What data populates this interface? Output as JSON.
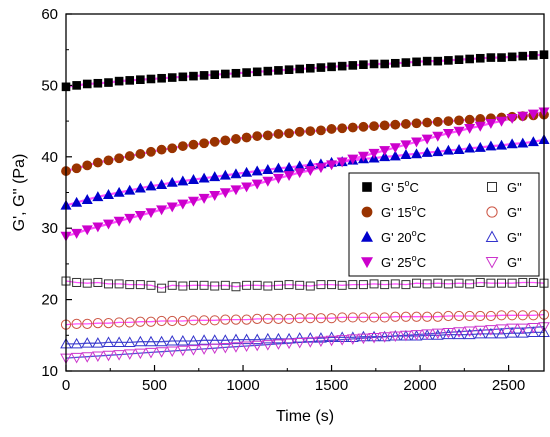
{
  "chart_data": {
    "type": "scatter",
    "title": "",
    "xlabel": "Time (s)",
    "ylabel": "G', G'' (Pa)",
    "xlim": [
      0,
      2700
    ],
    "ylim": [
      10,
      60
    ],
    "xticks": [
      0,
      500,
      1000,
      1500,
      2000,
      2500
    ],
    "yticks": [
      10,
      20,
      30,
      40,
      50,
      60
    ],
    "grid": false,
    "legend_placement": "center-right",
    "x": [
      0,
      60,
      120,
      180,
      240,
      300,
      360,
      420,
      480,
      540,
      600,
      660,
      720,
      780,
      840,
      900,
      960,
      1020,
      1080,
      1140,
      1200,
      1260,
      1320,
      1380,
      1440,
      1500,
      1560,
      1620,
      1680,
      1740,
      1800,
      1860,
      1920,
      1980,
      2040,
      2100,
      2160,
      2220,
      2280,
      2340,
      2400,
      2460,
      2520,
      2580,
      2640,
      2700
    ],
    "series": [
      {
        "name": "G' 5oC",
        "legend_main": "G' 5",
        "legend_sup": "o",
        "legend_tail": "C",
        "color": "#000000",
        "fit_color": "#ff33ff",
        "marker": "square",
        "filled": true,
        "values": [
          49.8,
          50.0,
          50.2,
          50.3,
          50.4,
          50.6,
          50.7,
          50.8,
          50.9,
          51.0,
          51.1,
          51.2,
          51.3,
          51.4,
          51.5,
          51.6,
          51.7,
          51.8,
          51.9,
          52.0,
          52.1,
          52.2,
          52.3,
          52.4,
          52.5,
          52.6,
          52.7,
          52.8,
          52.9,
          53.0,
          53.0,
          53.1,
          53.2,
          53.3,
          53.4,
          53.4,
          53.5,
          53.6,
          53.7,
          53.8,
          53.9,
          53.9,
          54.0,
          54.1,
          54.2,
          54.3
        ]
      },
      {
        "name": "G' 15oC",
        "legend_main": "G' 15",
        "legend_sup": "o",
        "legend_tail": "C",
        "color": "#993300",
        "fit_color": "#ff33ff",
        "marker": "circle",
        "filled": true,
        "values": [
          38.0,
          38.4,
          38.8,
          39.2,
          39.5,
          39.8,
          40.1,
          40.4,
          40.7,
          41.0,
          41.2,
          41.5,
          41.7,
          41.9,
          42.1,
          42.3,
          42.5,
          42.7,
          42.9,
          43.0,
          43.2,
          43.3,
          43.5,
          43.6,
          43.7,
          43.9,
          44.0,
          44.1,
          44.2,
          44.3,
          44.4,
          44.5,
          44.6,
          44.7,
          44.8,
          44.9,
          45.0,
          45.1,
          45.2,
          45.3,
          45.4,
          45.5,
          45.6,
          45.7,
          45.8,
          45.9
        ]
      },
      {
        "name": "G' 20oC",
        "legend_main": "G' 20",
        "legend_sup": "o",
        "legend_tail": "C",
        "color": "#0000cc",
        "fit_color": "#ff33ff",
        "marker": "triangle-up",
        "filled": true,
        "values": [
          33.2,
          33.6,
          34.0,
          34.4,
          34.7,
          35.0,
          35.3,
          35.6,
          35.9,
          36.1,
          36.4,
          36.6,
          36.8,
          37.0,
          37.2,
          37.4,
          37.6,
          37.8,
          38.0,
          38.2,
          38.4,
          38.5,
          38.7,
          38.9,
          39.0,
          39.2,
          39.3,
          39.5,
          39.7,
          39.8,
          40.0,
          40.1,
          40.3,
          40.4,
          40.6,
          40.7,
          40.9,
          41.0,
          41.2,
          41.3,
          41.5,
          41.6,
          41.8,
          41.9,
          42.1,
          42.4
        ]
      },
      {
        "name": "G' 25oC",
        "legend_main": "G' 25",
        "legend_sup": "o",
        "legend_tail": "C",
        "color": "#cc00cc",
        "fit_color": "#ff33ff",
        "marker": "triangle-down",
        "filled": true,
        "values": [
          28.9,
          29.3,
          29.8,
          30.2,
          30.6,
          31.0,
          31.4,
          31.8,
          32.2,
          32.6,
          33.0,
          33.4,
          33.8,
          34.2,
          34.6,
          35.0,
          35.4,
          35.8,
          36.2,
          36.6,
          37.0,
          37.4,
          37.8,
          38.1,
          38.5,
          38.9,
          39.3,
          39.7,
          40.1,
          40.5,
          40.9,
          41.3,
          41.7,
          42.1,
          42.5,
          42.9,
          43.3,
          43.6,
          44.0,
          44.3,
          44.7,
          45.0,
          45.4,
          45.7,
          46.0,
          46.3
        ]
      },
      {
        "name": "G'' 5oC",
        "legend_main": "G\"",
        "legend_sup": "",
        "legend_tail": "",
        "color": "#333333",
        "fit_color": "#ff33ff",
        "marker": "square",
        "filled": false,
        "values": [
          22.6,
          22.4,
          22.3,
          22.4,
          22.2,
          22.2,
          22.1,
          22.1,
          22.0,
          21.6,
          22.0,
          21.9,
          22.0,
          22.0,
          21.9,
          22.0,
          21.8,
          22.0,
          22.0,
          21.9,
          22.0,
          22.1,
          22.0,
          21.9,
          22.1,
          22.1,
          22.0,
          22.1,
          22.1,
          22.2,
          22.1,
          22.2,
          22.1,
          22.3,
          22.2,
          22.3,
          22.2,
          22.3,
          22.2,
          22.4,
          22.3,
          22.3,
          22.3,
          22.4,
          22.4,
          22.3
        ]
      },
      {
        "name": "G'' 15oC",
        "legend_main": "G\"",
        "legend_sup": "",
        "legend_tail": "",
        "color": "#cc5544",
        "fit_color": "#ff33ff",
        "marker": "circle",
        "filled": false,
        "values": [
          16.5,
          16.6,
          16.6,
          16.7,
          16.7,
          16.8,
          16.8,
          16.9,
          16.9,
          17.0,
          17.0,
          17.0,
          17.1,
          17.1,
          17.1,
          17.2,
          17.2,
          17.2,
          17.3,
          17.3,
          17.3,
          17.3,
          17.4,
          17.4,
          17.4,
          17.4,
          17.5,
          17.5,
          17.5,
          17.5,
          17.5,
          17.6,
          17.6,
          17.6,
          17.6,
          17.6,
          17.7,
          17.7,
          17.7,
          17.7,
          17.7,
          17.8,
          17.8,
          17.8,
          17.8,
          17.9
        ]
      },
      {
        "name": "G'' 20oC",
        "legend_main": "G\"",
        "legend_sup": "",
        "legend_tail": "",
        "color": "#3333cc",
        "fit_color": "#3333cc",
        "marker": "triangle-up",
        "filled": false,
        "values": [
          13.8,
          13.8,
          13.9,
          13.9,
          14.0,
          14.0,
          14.0,
          14.1,
          14.1,
          14.1,
          14.2,
          14.2,
          14.2,
          14.3,
          14.3,
          14.3,
          14.4,
          14.4,
          14.4,
          14.5,
          14.5,
          14.5,
          14.6,
          14.6,
          14.6,
          14.7,
          14.7,
          14.7,
          14.8,
          14.8,
          14.8,
          14.9,
          14.9,
          14.9,
          15.0,
          15.0,
          15.1,
          15.1,
          15.1,
          15.2,
          15.2,
          15.2,
          15.3,
          15.3,
          15.4,
          15.4
        ]
      },
      {
        "name": "G'' 25oC",
        "legend_main": "G\"",
        "legend_sup": "",
        "legend_tail": "",
        "color": "#cc33cc",
        "fit_color": "#3333cc",
        "marker": "triangle-down",
        "filled": false,
        "values": [
          11.8,
          11.9,
          12.0,
          12.1,
          12.2,
          12.3,
          12.4,
          12.5,
          12.6,
          12.7,
          12.8,
          12.9,
          13.0,
          13.1,
          13.2,
          13.3,
          13.4,
          13.5,
          13.6,
          13.7,
          13.8,
          13.9,
          14.0,
          14.1,
          14.2,
          14.3,
          14.4,
          14.5,
          14.6,
          14.7,
          14.8,
          14.9,
          15.0,
          15.1,
          15.2,
          15.3,
          15.4,
          15.5,
          15.6,
          15.7,
          15.8,
          15.9,
          16.0,
          16.0,
          16.1,
          16.2
        ]
      }
    ]
  }
}
